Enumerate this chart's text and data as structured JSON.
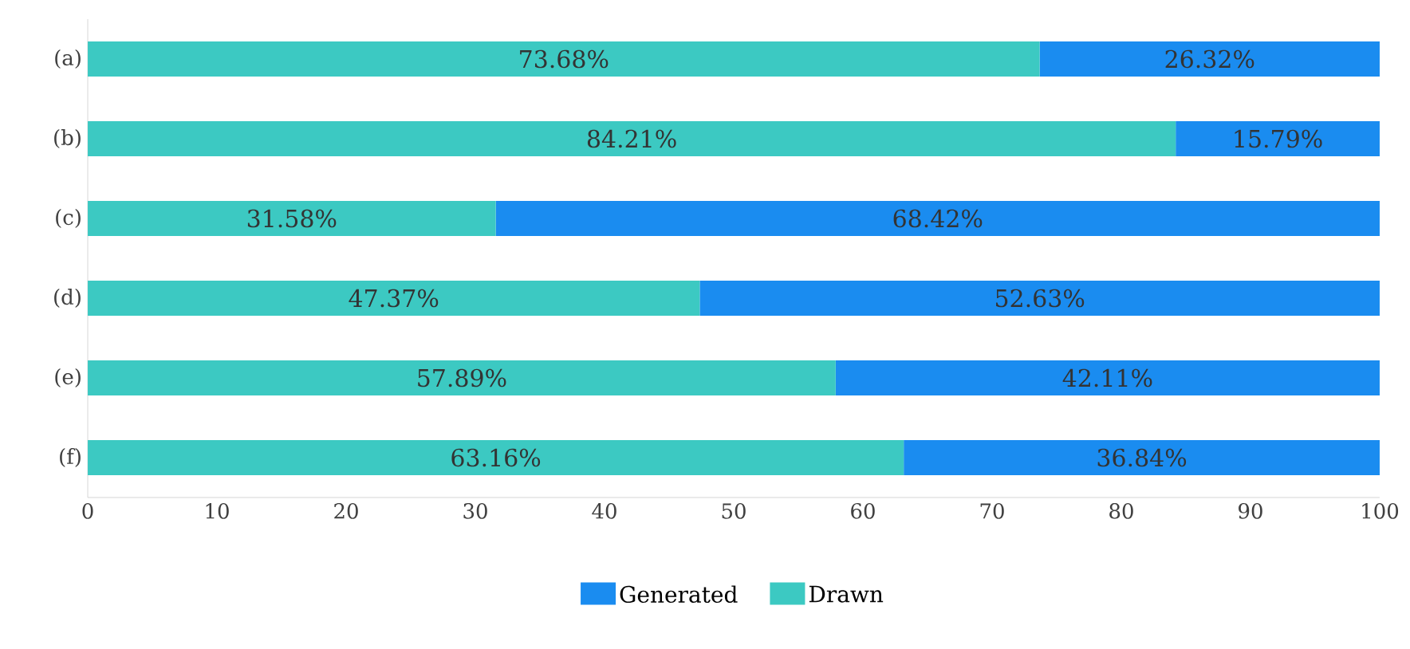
{
  "chart_data": {
    "type": "bar",
    "orientation": "horizontal",
    "stacked": true,
    "categories": [
      "(a)",
      "(b)",
      "(c)",
      "(d)",
      "(e)",
      "(f)"
    ],
    "series": [
      {
        "name": "Drawn",
        "color": "#3cc9c2",
        "values": [
          73.68,
          84.21,
          31.58,
          47.37,
          57.89,
          63.16
        ],
        "value_labels": [
          "73.68%",
          "84.21%",
          "31.58%",
          "47.37%",
          "57.89%",
          "63.16%"
        ]
      },
      {
        "name": "Generated",
        "color": "#1a8cf0",
        "values": [
          26.32,
          15.79,
          68.42,
          52.63,
          42.11,
          36.84
        ],
        "value_labels": [
          "26.32%",
          "15.79%",
          "68.42%",
          "52.63%",
          "42.11%",
          "36.84%"
        ]
      }
    ],
    "xlim": [
      0,
      100
    ],
    "xticks": [
      0,
      10,
      20,
      30,
      40,
      50,
      60,
      70,
      80,
      90,
      100
    ],
    "legend": "bottom",
    "grid": false
  }
}
